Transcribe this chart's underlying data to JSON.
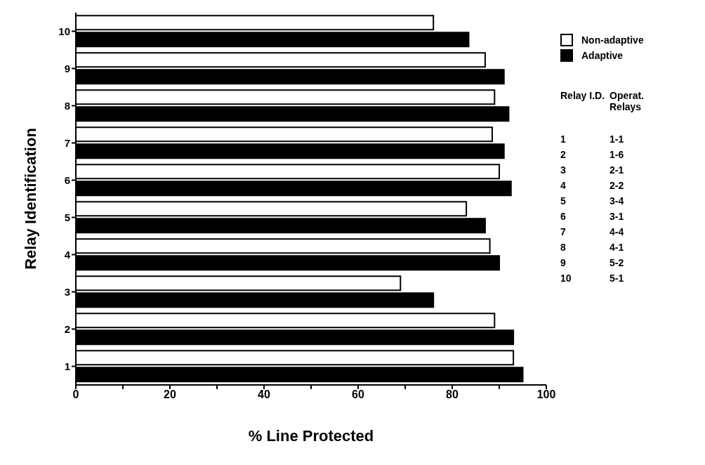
{
  "chart_data": {
    "type": "bar",
    "orientation": "horizontal",
    "xlabel": "% Line Protected",
    "ylabel": "Relay Identification",
    "categories": [
      "10",
      "9",
      "8",
      "7",
      "6",
      "5",
      "4",
      "3",
      "2",
      "1"
    ],
    "series": [
      {
        "name": "Non-adaptive",
        "color": "#ffffff",
        "values": [
          76,
          87,
          89,
          88.5,
          90,
          83,
          88,
          69,
          89,
          93
        ]
      },
      {
        "name": "Adaptive",
        "color": "#000000",
        "values": [
          83.5,
          91,
          92,
          91,
          92.5,
          87,
          90,
          76,
          93,
          95
        ]
      }
    ],
    "xlim": [
      0,
      100
    ],
    "xticks": [
      0,
      {
        "value": 10,
        "label": null
      },
      20,
      {
        "value": 30,
        "label": null
      },
      40,
      {
        "value": 50,
        "label": null
      },
      60,
      {
        "value": 70,
        "label": null
      },
      80,
      {
        "value": 90,
        "label": null
      },
      100
    ],
    "grid": false,
    "legend": "right",
    "annotations": [
      "Relay I.D.",
      "Operat. Relays",
      "1",
      "1-1",
      "2",
      "1-6",
      "3",
      "2-1",
      "4",
      "2-2",
      "5",
      "3-4",
      "6",
      "3-1",
      "7",
      "4-4",
      "8",
      "4-1",
      "9",
      "5-2",
      "10",
      "5-1"
    ]
  }
}
